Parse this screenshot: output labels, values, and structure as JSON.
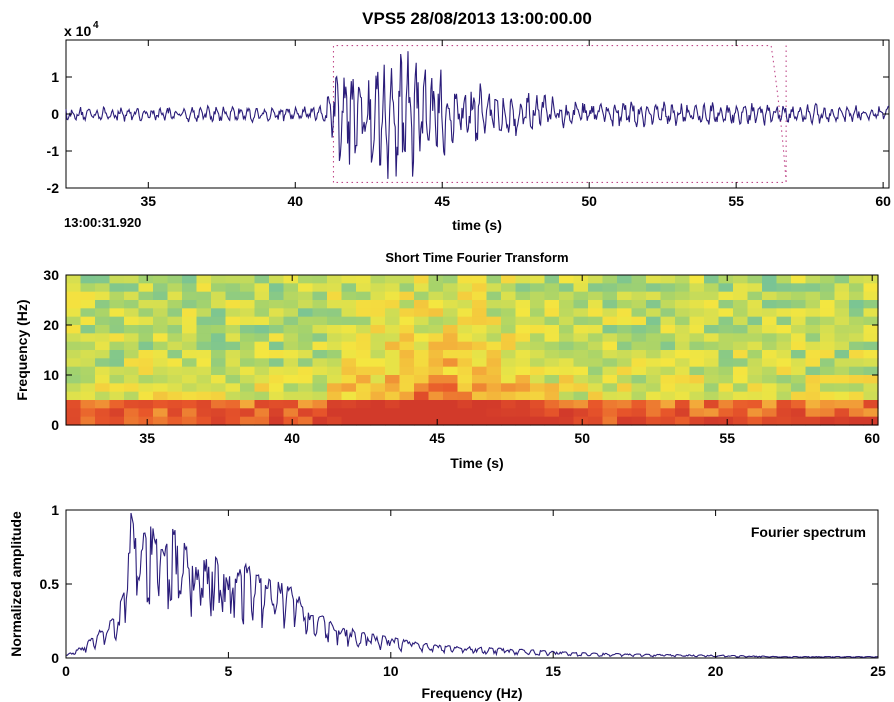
{
  "colors": {
    "line": "#2b1d7a",
    "window_marker": "#c04a8a",
    "axis": "#000000",
    "colormap": [
      "#1a8fc8",
      "#52b7b9",
      "#a6d36b",
      "#f4e640",
      "#f3a93a",
      "#e8572a",
      "#d23a2a"
    ]
  },
  "chart_data": [
    {
      "type": "line",
      "title": "VPS5 28/08/2013  13:00:00.00",
      "exponent_label": "x 10",
      "exponent_power": "4",
      "start_time_label": "13:00:31.920",
      "xlabel": "time (s)",
      "ylabel": "",
      "xlim": [
        32.2,
        60.2
      ],
      "ylim": [
        -2,
        2
      ],
      "xticks": [
        35,
        40,
        45,
        50,
        55,
        60
      ],
      "yticks": [
        1,
        0,
        -1,
        -2
      ],
      "grid": false,
      "window_marker": {
        "x_start": 41.3,
        "x_end": 56.7,
        "y_top": 1.85,
        "y_bottom": -1.85
      },
      "series": [
        {
          "values_note": "seismic trace",
          "envelope": [
            {
              "t": 32.2,
              "a": 0.2
            },
            {
              "t": 41.0,
              "a": 0.25
            },
            {
              "t": 41.5,
              "a": 1.6
            },
            {
              "t": 43.7,
              "a": 1.85
            },
            {
              "t": 45.5,
              "a": 1.0
            },
            {
              "t": 48.0,
              "a": 0.6
            },
            {
              "t": 50.0,
              "a": 0.4
            },
            {
              "t": 60.2,
              "a": 0.25
            }
          ]
        }
      ]
    },
    {
      "type": "heatmap",
      "title": "Short Time Fourier Transform",
      "xlabel": "Time (s)",
      "ylabel": "Frequency (Hz)",
      "xlim": [
        32.2,
        60.2
      ],
      "ylim": [
        0,
        30
      ],
      "xticks": [
        35,
        40,
        45,
        50,
        55,
        60
      ],
      "yticks": [
        30,
        20,
        10,
        0
      ],
      "grid": false
    },
    {
      "type": "line",
      "title": "",
      "legend_text": "Fourier spectrum",
      "xlabel": "Frequency (Hz)",
      "ylabel": "Normalized amplitude",
      "xlim": [
        0,
        25
      ],
      "ylim": [
        0,
        1
      ],
      "xticks": [
        0,
        5,
        10,
        15,
        20,
        25
      ],
      "yticks": [
        1,
        0.5,
        0
      ],
      "grid": false,
      "series": [
        {
          "x": [
            0,
            0.5,
            1.0,
            1.5,
            1.8,
            2.0,
            2.3,
            2.6,
            3.0,
            3.3,
            3.6,
            4.0,
            4.5,
            5.0,
            5.5,
            6.0,
            6.5,
            7.0,
            7.5,
            8.0,
            9.0,
            10.0,
            11.0,
            12.0,
            13.0,
            14.0,
            15.0,
            16.0,
            18.0,
            20.0,
            22.0,
            25.0
          ],
          "values": [
            0.02,
            0.08,
            0.18,
            0.28,
            0.45,
            0.98,
            0.85,
            0.92,
            0.75,
            0.88,
            0.8,
            0.62,
            0.72,
            0.55,
            0.65,
            0.55,
            0.52,
            0.48,
            0.3,
            0.28,
            0.18,
            0.14,
            0.1,
            0.08,
            0.07,
            0.06,
            0.045,
            0.035,
            0.025,
            0.02,
            0.01,
            0.01
          ]
        }
      ]
    }
  ]
}
